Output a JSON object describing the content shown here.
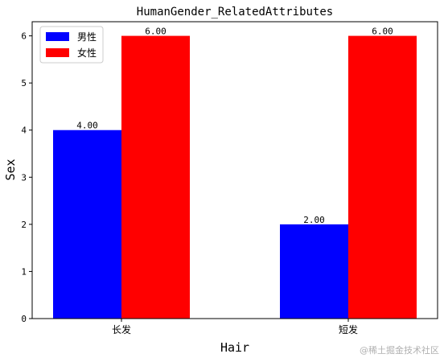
{
  "chart_data": {
    "type": "bar",
    "title": "HumanGender_RelatedAttributes",
    "xlabel": "Hair",
    "ylabel": "Sex",
    "categories": [
      "长发",
      "短发"
    ],
    "series": [
      {
        "name": "男性",
        "color": "#0000ff",
        "values": [
          4.0,
          2.0
        ],
        "value_labels": [
          "4.00",
          "2.00"
        ]
      },
      {
        "name": "女性",
        "color": "#ff0000",
        "values": [
          6.0,
          6.0
        ],
        "value_labels": [
          "6.00",
          "6.00"
        ]
      }
    ],
    "ylim": [
      0,
      6.3
    ],
    "yticks": [
      0,
      1,
      2,
      3,
      4,
      5,
      6
    ],
    "grid": false,
    "legend_position": "upper-left",
    "watermark": "@稀土掘金技术社区"
  }
}
